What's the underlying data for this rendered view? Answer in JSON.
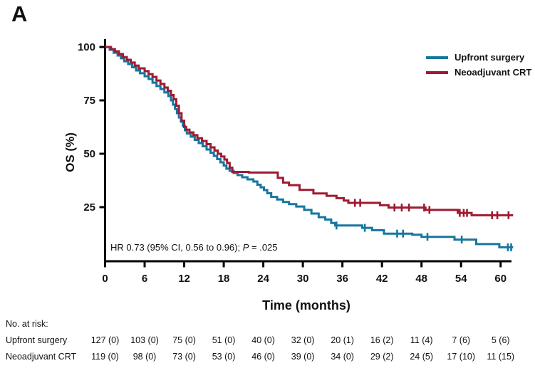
{
  "panel_label": "A",
  "legend": {
    "items": [
      {
        "label": "Upfront surgery"
      },
      {
        "label": "Neoadjuvant CRT"
      }
    ]
  },
  "annotation": {
    "hr_text": "HR 0.73 (95% CI, 0.56 to 0.96); ",
    "p_label": "P",
    "p_suffix": " = .025"
  },
  "chart_data": {
    "type": "line",
    "subtype": "kaplan-meier-step",
    "title": "",
    "xlabel": "Time (months)",
    "ylabel": "OS (%)",
    "xlim": [
      0,
      62
    ],
    "ylim": [
      0,
      100
    ],
    "x_ticks": [
      0,
      6,
      12,
      18,
      24,
      30,
      36,
      42,
      48,
      54,
      60
    ],
    "y_ticks": [
      100,
      75,
      50,
      25
    ],
    "grid": false,
    "legend_position": "top-right",
    "axis_color": "#000000",
    "series": [
      {
        "name": "Upfront surgery",
        "color": "#16769F",
        "steps": [
          [
            0,
            100
          ],
          [
            0.7,
            98.7
          ],
          [
            1.3,
            97.3
          ],
          [
            1.9,
            96
          ],
          [
            2.4,
            94.7
          ],
          [
            2.9,
            93.3
          ],
          [
            3.5,
            92
          ],
          [
            4.1,
            90.5
          ],
          [
            4.7,
            89
          ],
          [
            5.3,
            87.7
          ],
          [
            6,
            86.3
          ],
          [
            6.6,
            85
          ],
          [
            7.2,
            83.3
          ],
          [
            7.8,
            81.7
          ],
          [
            8.4,
            80.3
          ],
          [
            9,
            78.7
          ],
          [
            9.6,
            77
          ],
          [
            10,
            75
          ],
          [
            10.3,
            73
          ],
          [
            10.6,
            71
          ],
          [
            10.9,
            69
          ],
          [
            11.2,
            67
          ],
          [
            11.5,
            65
          ],
          [
            11.8,
            63
          ],
          [
            12.1,
            61
          ],
          [
            12.4,
            59.5
          ],
          [
            13,
            58
          ],
          [
            13.6,
            56.5
          ],
          [
            14.2,
            55
          ],
          [
            14.8,
            53.5
          ],
          [
            15.4,
            52
          ],
          [
            16,
            50.5
          ],
          [
            16.5,
            49
          ],
          [
            17,
            47.5
          ],
          [
            17.5,
            46
          ],
          [
            18,
            44.5
          ],
          [
            18.4,
            43
          ],
          [
            18.9,
            42
          ],
          [
            19.5,
            41
          ],
          [
            20.1,
            40
          ],
          [
            20.8,
            39
          ],
          [
            21.6,
            38
          ],
          [
            22.5,
            37
          ],
          [
            23.1,
            35.5
          ],
          [
            23.6,
            34.3
          ],
          [
            24.1,
            33
          ],
          [
            24.6,
            31.5
          ],
          [
            25.2,
            29.8
          ],
          [
            26.1,
            28.6
          ],
          [
            27,
            27.4
          ],
          [
            27.9,
            26.4
          ],
          [
            29,
            25.3
          ],
          [
            30.2,
            23.7
          ],
          [
            31.3,
            22
          ],
          [
            32.4,
            20.3
          ],
          [
            33.4,
            19.2
          ],
          [
            34.3,
            17.6
          ],
          [
            34.9,
            16.4
          ],
          [
            39,
            15.3
          ],
          [
            40.5,
            14.2
          ],
          [
            42.3,
            12.6
          ],
          [
            46.6,
            12.1
          ],
          [
            48,
            11.1
          ],
          [
            53,
            9.8
          ],
          [
            56.3,
            7.7
          ],
          [
            59.8,
            6.2
          ],
          [
            61.9,
            6.2
          ]
        ],
        "censor_months": [
          35.1,
          39.4,
          44.3,
          45.2,
          48.9,
          54.1,
          61.1,
          61.6
        ]
      },
      {
        "name": "Neoadjuvant CRT",
        "color": "#9E1B32",
        "steps": [
          [
            0,
            100
          ],
          [
            0.9,
            99
          ],
          [
            1.5,
            98
          ],
          [
            2.1,
            96.7
          ],
          [
            2.7,
            95.3
          ],
          [
            3.3,
            94
          ],
          [
            3.9,
            92.7
          ],
          [
            4.5,
            91.3
          ],
          [
            5.1,
            90
          ],
          [
            6,
            88.7
          ],
          [
            6.6,
            87.3
          ],
          [
            7.2,
            86
          ],
          [
            7.8,
            84.3
          ],
          [
            8.4,
            82.7
          ],
          [
            9,
            81
          ],
          [
            9.5,
            79.5
          ],
          [
            10,
            77.5
          ],
          [
            10.4,
            75.5
          ],
          [
            10.8,
            72.5
          ],
          [
            11.2,
            69
          ],
          [
            11.6,
            65.5
          ],
          [
            12,
            62.5
          ],
          [
            12.3,
            61.3
          ],
          [
            12.8,
            60
          ],
          [
            13.4,
            58.7
          ],
          [
            14,
            57.3
          ],
          [
            14.7,
            56
          ],
          [
            15.4,
            54.5
          ],
          [
            16,
            53
          ],
          [
            16.6,
            51.5
          ],
          [
            17.1,
            50
          ],
          [
            17.6,
            48.7
          ],
          [
            18.1,
            47.3
          ],
          [
            18.5,
            45.7
          ],
          [
            18.9,
            43.5
          ],
          [
            19.3,
            41.5
          ],
          [
            21.8,
            41.2
          ],
          [
            26.2,
            38.7
          ],
          [
            27,
            36.5
          ],
          [
            27.9,
            35.3
          ],
          [
            29.5,
            33.1
          ],
          [
            31.6,
            31.4
          ],
          [
            33.6,
            30.3
          ],
          [
            35.1,
            29.2
          ],
          [
            36.2,
            28.1
          ],
          [
            36.9,
            27
          ],
          [
            41.7,
            25.9
          ],
          [
            43,
            24.8
          ],
          [
            48.6,
            23.7
          ],
          [
            53.5,
            22.3
          ],
          [
            55.6,
            21.2
          ],
          [
            61.9,
            21.2
          ]
        ],
        "censor_months": [
          37.9,
          38.7,
          43.9,
          45.0,
          46.1,
          48.4,
          49.2,
          53.8,
          54.4,
          54.9,
          58.7,
          59.5,
          61.2
        ]
      }
    ]
  },
  "risk_table": {
    "title": "No. at risk:",
    "time_points": [
      0,
      6,
      12,
      18,
      24,
      30,
      36,
      42,
      48,
      54,
      60
    ],
    "rows": [
      {
        "label": "Upfront surgery",
        "values": [
          "127 (0)",
          "103 (0)",
          "75 (0)",
          "51 (0)",
          "40 (0)",
          "32 (0)",
          "20 (1)",
          "16 (2)",
          "11 (4)",
          "7 (6)",
          "5 (6)"
        ]
      },
      {
        "label": "Neoadjuvant CRT",
        "values": [
          "119 (0)",
          "98 (0)",
          "73 (0)",
          "53 (0)",
          "46 (0)",
          "39 (0)",
          "34 (0)",
          "29 (2)",
          "24 (5)",
          "17 (10)",
          "11 (15)"
        ]
      }
    ]
  }
}
